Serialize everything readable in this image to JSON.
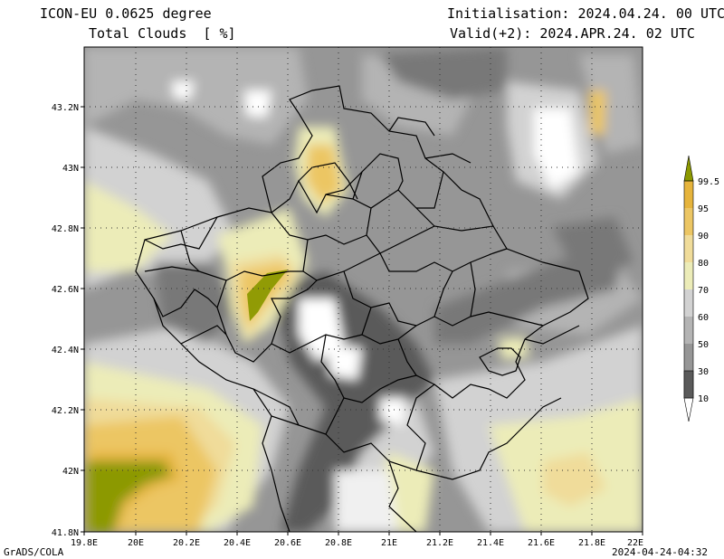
{
  "header": {
    "model_line": "ICON-EU 0.0625 degree",
    "variable_line": "Total Clouds  [ %]",
    "init_line": "Initialisation: 2024.04.24. 00 UTC",
    "valid_line": "Valid(+2): 2024.APR.24. 02 UTC"
  },
  "axes": {
    "lon_ticks": [
      "19.8E",
      "20E",
      "20.2E",
      "20.4E",
      "20.6E",
      "20.8E",
      "21E",
      "21.2E",
      "21.4E",
      "21.6E",
      "21.8E",
      "22E"
    ],
    "lat_ticks": [
      "43.2N",
      "43N",
      "42.8N",
      "42.6N",
      "42.4N",
      "42.2N",
      "42N",
      "41.8N"
    ]
  },
  "colorbar": {
    "labels": [
      "99.5",
      "95",
      "90",
      "80",
      "70",
      "60",
      "50",
      "30",
      "10"
    ],
    "colors": [
      "#8c9900",
      "#e6b43c",
      "#ecc664",
      "#f0dc9a",
      "#ececb8",
      "#d2d2d2",
      "#b4b4b4",
      "#969696",
      "#787878",
      "#5a5a5a"
    ]
  },
  "footer": {
    "left": "GrADS/COLA",
    "right": "2024-04-24-04:32"
  }
}
